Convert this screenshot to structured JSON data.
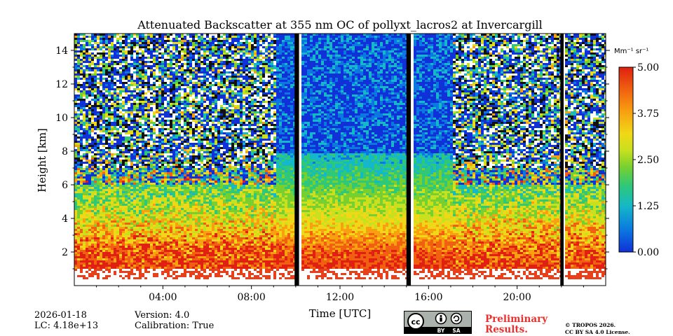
{
  "chart_data": {
    "type": "heatmap",
    "title": "Attenuated Backscatter at 355 nm OC of pollyxt_lacros2 at Invercargill",
    "xlabel": "Time [UTC]",
    "ylabel": "Height [km]",
    "xlim": [
      0,
      24
    ],
    "ylim": [
      0,
      15
    ],
    "x_ticks": [
      {
        "value": 4,
        "label": "04:00"
      },
      {
        "value": 8,
        "label": "08:00"
      },
      {
        "value": 12,
        "label": "12:00"
      },
      {
        "value": 16,
        "label": "16:00"
      },
      {
        "value": 20,
        "label": "20:00"
      }
    ],
    "y_ticks": [
      {
        "value": 2,
        "label": "2"
      },
      {
        "value": 4,
        "label": "4"
      },
      {
        "value": 6,
        "label": "6"
      },
      {
        "value": 8,
        "label": "8"
      },
      {
        "value": 10,
        "label": "10"
      },
      {
        "value": 12,
        "label": "12"
      },
      {
        "value": 14,
        "label": "14"
      }
    ],
    "colorbar": {
      "unit_label": "Mm⁻¹ sr⁻¹",
      "range": [
        0.0,
        5.0
      ],
      "ticks": [
        {
          "value": 0.0,
          "label": "0.00"
        },
        {
          "value": 1.25,
          "label": "1.25"
        },
        {
          "value": 2.5,
          "label": "2.50"
        },
        {
          "value": 3.75,
          "label": "3.75"
        },
        {
          "value": 5.0,
          "label": "5.00"
        }
      ],
      "colormap": [
        "#1030d8",
        "#0a78e0",
        "#15b8c8",
        "#2ec878",
        "#78d030",
        "#c8e01e",
        "#f0d818",
        "#f8a010",
        "#f06010",
        "#e02010"
      ]
    },
    "no_data_periods_utc": [
      [
        9.95,
        10.15
      ],
      [
        15.0,
        15.2
      ],
      [
        21.95,
        22.1
      ]
    ],
    "surface_signal_top_km": 1.1
  },
  "meta": {
    "date": "2026-01-18",
    "lc": "LC: 4.18e+13",
    "version": "Version: 4.0",
    "calibration": "Calibration: True"
  },
  "license": {
    "badge_cc": "cc",
    "badge_by": "BY",
    "badge_sa": "SA",
    "preliminary_line1": "Preliminary",
    "preliminary_line2": "Results.",
    "copyright_line1": "© TROPOS 2026.",
    "copyright_line2": "CC BY SA 4.0 License."
  }
}
